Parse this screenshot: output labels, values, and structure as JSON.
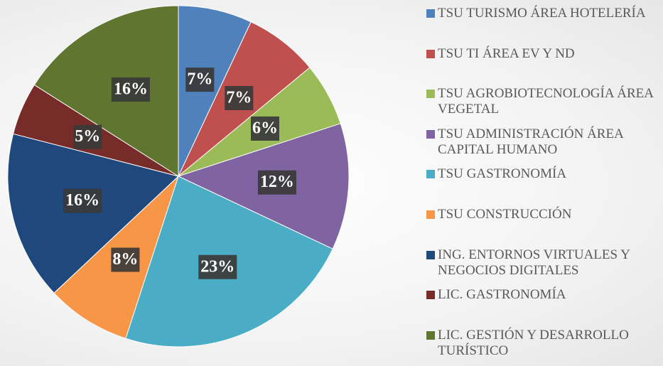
{
  "chart_data": {
    "type": "pie",
    "categories": [
      "TSU TURISMO ÁREA HOTELERÍA",
      "TSU TI ÁREA EV Y ND",
      "TSU AGROBIOTECNOLOGÍA ÁREA VEGETAL",
      "TSU ADMINISTRACIÓN ÁREA CAPITAL HUMANO",
      "TSU GASTRONOMÍA",
      "TSU CONSTRUCCIÓN",
      "ING. ENTORNOS VIRTUALES Y NEGOCIOS DIGITALES",
      "LIC. GASTRONOMÍA",
      "LIC. GESTIÓN Y DESARROLLO TURÍSTICO"
    ],
    "values": [
      7,
      7,
      6,
      12,
      23,
      8,
      16,
      5,
      16
    ],
    "value_labels": [
      "7%",
      "7%",
      "6%",
      "12%",
      "23%",
      "8%",
      "16%",
      "5%",
      "16%"
    ],
    "colors": [
      "#4f81bd",
      "#c0504d",
      "#9bbb59",
      "#8064a2",
      "#4bacc6",
      "#f79646",
      "#1f497d",
      "#772c2a",
      "#5f7530"
    ],
    "legend": "right"
  }
}
